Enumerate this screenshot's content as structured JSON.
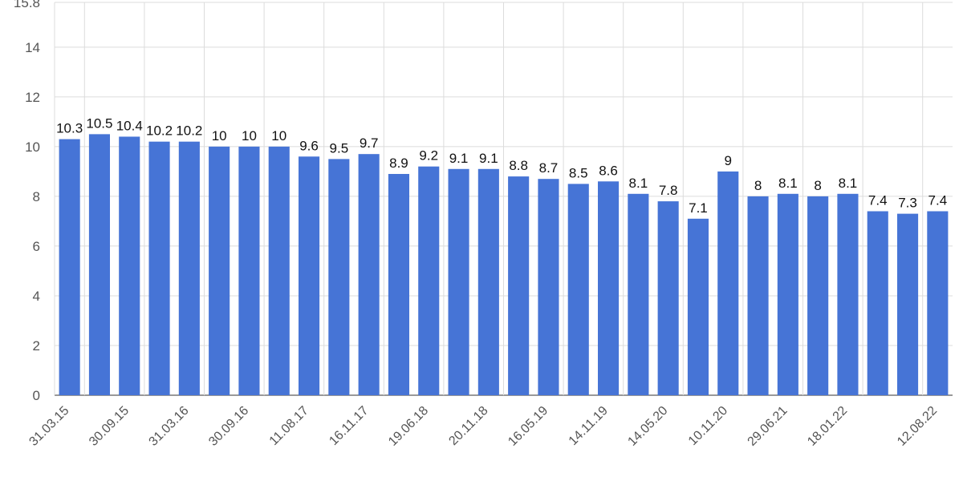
{
  "chart_data": {
    "type": "bar",
    "values": [
      10.3,
      10.5,
      10.4,
      10.2,
      10.2,
      10,
      10,
      10,
      9.6,
      9.5,
      9.7,
      8.9,
      9.2,
      9.1,
      9.1,
      8.8,
      8.7,
      8.5,
      8.6,
      8.1,
      7.8,
      7.1,
      9,
      8,
      8.1,
      8,
      8.1,
      7.4,
      7.3,
      7.4
    ],
    "value_labels": [
      "10.3",
      "10.5",
      "10.4",
      "10.2",
      "10.2",
      "10",
      "10",
      "10",
      "9.6",
      "9.5",
      "9.7",
      "8.9",
      "9.2",
      "9.1",
      "9.1",
      "8.8",
      "8.7",
      "8.5",
      "8.6",
      "8.1",
      "7.8",
      "7.1",
      "9",
      "8",
      "8.1",
      "8",
      "8.1",
      "7.4",
      "7.3",
      "7.4"
    ],
    "x_tick_labels": [
      {
        "bar": 0,
        "label": "31.03.15"
      },
      {
        "bar": 2,
        "label": "30.09.15"
      },
      {
        "bar": 4,
        "label": "31.03.16"
      },
      {
        "bar": 6,
        "label": "30.09.16"
      },
      {
        "bar": 8,
        "label": "11.08.17"
      },
      {
        "bar": 10,
        "label": "16.11.17"
      },
      {
        "bar": 12,
        "label": "19.06.18"
      },
      {
        "bar": 14,
        "label": "20.11.18"
      },
      {
        "bar": 16,
        "label": "16.05.19"
      },
      {
        "bar": 18,
        "label": "14.11.19"
      },
      {
        "bar": 20,
        "label": "14.05.20"
      },
      {
        "bar": 22,
        "label": "10.11.20"
      },
      {
        "bar": 24,
        "label": "29.06.21"
      },
      {
        "bar": 26,
        "label": "18.01.22"
      },
      {
        "bar": 29,
        "label": "12.08.22"
      }
    ],
    "y_ticks": [
      0,
      2,
      4,
      6,
      8,
      10,
      12,
      14,
      15.8
    ],
    "y_tick_labels": [
      "0",
      "2",
      "4",
      "6",
      "8",
      "10",
      "12",
      "14",
      "15.8"
    ],
    "ylim": [
      0,
      15.8
    ],
    "grid": true,
    "legend": "none",
    "title": "",
    "xlabel": "",
    "ylabel": "",
    "colors": {
      "bar": "#4674d6",
      "grid": "#dcdcdc",
      "axis": "#333333",
      "tick_text": "#555555",
      "label_text": "#111111"
    }
  }
}
